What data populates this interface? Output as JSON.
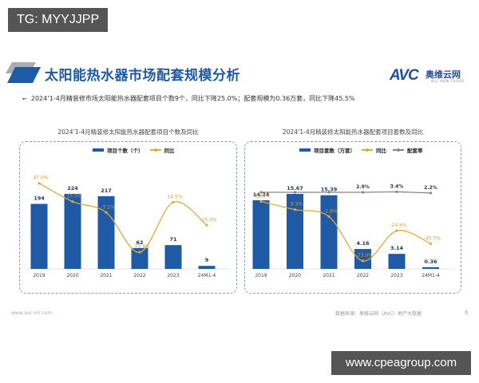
{
  "overlay": {
    "top_left_tag": "TG: MYYJJPP",
    "bottom_right_url": "www.cpeagroup.com"
  },
  "header": {
    "title": "太阳能热水器市场配套规模分析",
    "bullet_icon": "double-arrow-icon",
    "bullet_text": "2024’1-4月精装修市场太阳能热水器配套项目个数9个，同比下降25.0%；配套规模为0.36万套，同比下降45.5%",
    "logo": {
      "mark": "AVC",
      "cn_name": "奥维云网",
      "en_name": "ALL VIEW CLOUD"
    }
  },
  "colors": {
    "bar": "#1f5aa6",
    "yoy_line": "#e0a93a",
    "rate_line": "#7f8790",
    "title": "#1f5aa6",
    "frame": "#8a9aa8"
  },
  "footer": {
    "website": "www.avc-mr.com",
    "source": "数据来源：奥维云网（AVC）地产大数据",
    "page": "6"
  },
  "chart_data": [
    {
      "type": "bar",
      "title": "2024’1-4月精装修太阳能热水器配套项目个数及同比",
      "categories": [
        "2019",
        "2020",
        "2021",
        "2022",
        "2023",
        "24M1-4"
      ],
      "series": [
        {
          "name": "项目个数（个）",
          "type": "bar",
          "values": [
            194,
            224,
            217,
            62,
            71,
            9
          ],
          "labels": [
            "194",
            "224",
            "217",
            "62",
            "71",
            "9"
          ]
        },
        {
          "name": "同比",
          "type": "line",
          "values": [
            47.0,
            15.5,
            -3.1,
            -71.4,
            14.5,
            -25.0
          ],
          "labels": [
            "47.0%",
            "15.5%",
            "-3.1%",
            "-71.4%",
            "14.5%",
            "-25.0%"
          ]
        }
      ],
      "legend": [
        "项目个数（个）",
        "同比"
      ],
      "legend_position": "top",
      "grid": false,
      "xlabel": "",
      "ylabel": ""
    },
    {
      "type": "bar",
      "title": "2024’1-4月精装修太阳能热水器配套项目套数及同比",
      "categories": [
        "2019",
        "2020",
        "2021",
        "2022",
        "2023",
        "24M1-4"
      ],
      "series": [
        {
          "name": "项目套数（万套）",
          "type": "bar",
          "values": [
            14.34,
            15.67,
            15.39,
            4.16,
            3.14,
            0.36
          ],
          "labels": [
            "14.34",
            "15.67",
            "15.39",
            "4.16",
            "3.14",
            "0.36"
          ]
        },
        {
          "name": "同比",
          "type": "line",
          "values": [
            22.4,
            9.3,
            -1.8,
            -73.0,
            -24.6,
            -45.5
          ],
          "labels": [
            "22.4%",
            "9.3%",
            "-1.8%",
            "-73.0%",
            "-24.6%",
            "-45.5%"
          ]
        },
        {
          "name": "配套率",
          "type": "line",
          "values": [
            null,
            null,
            null,
            2.9,
            3.4,
            2.2
          ],
          "labels": [
            "",
            "",
            "",
            "2.9%",
            "3.4%",
            "2.2%"
          ]
        }
      ],
      "legend": [
        "项目套数（万套）",
        "同比",
        "配套率"
      ],
      "legend_position": "top",
      "grid": false,
      "xlabel": "",
      "ylabel": ""
    }
  ]
}
